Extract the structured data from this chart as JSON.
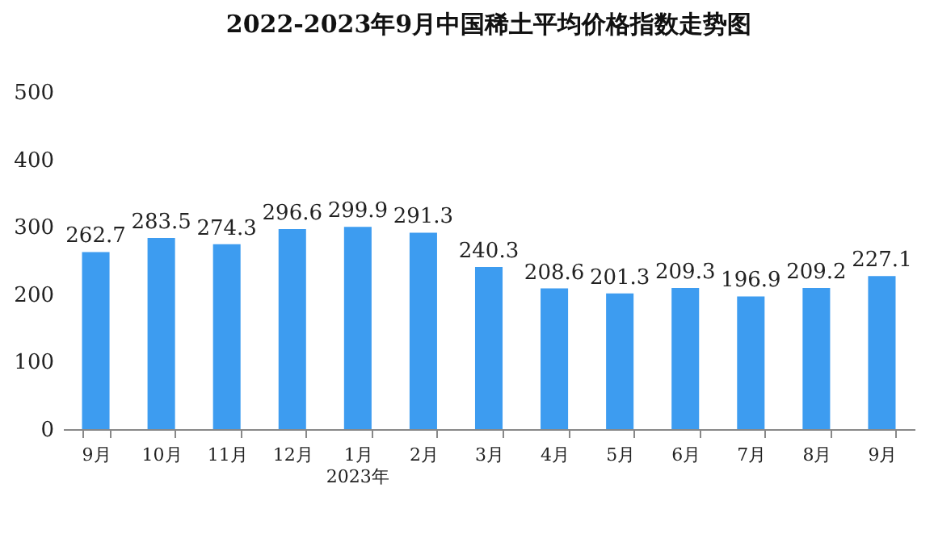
{
  "chart_data": {
    "type": "bar",
    "title": "2022-2023年9月中国稀土平均价格指数走势图",
    "categories": [
      "9月",
      "10月",
      "11月",
      "12月",
      "1月",
      "2月",
      "3月",
      "4月",
      "5月",
      "6月",
      "7月",
      "8月",
      "9月"
    ],
    "values": [
      262.7,
      283.5,
      274.3,
      296.6,
      299.9,
      291.3,
      240.3,
      208.6,
      201.3,
      209.3,
      196.9,
      209.2,
      227.1
    ],
    "color": "#3d9cf0",
    "ylim": [
      0,
      500
    ],
    "yticks": [
      0,
      100,
      200,
      300,
      400,
      500
    ],
    "grid": false,
    "data_labels": true,
    "annotations": [
      "2023年"
    ]
  }
}
